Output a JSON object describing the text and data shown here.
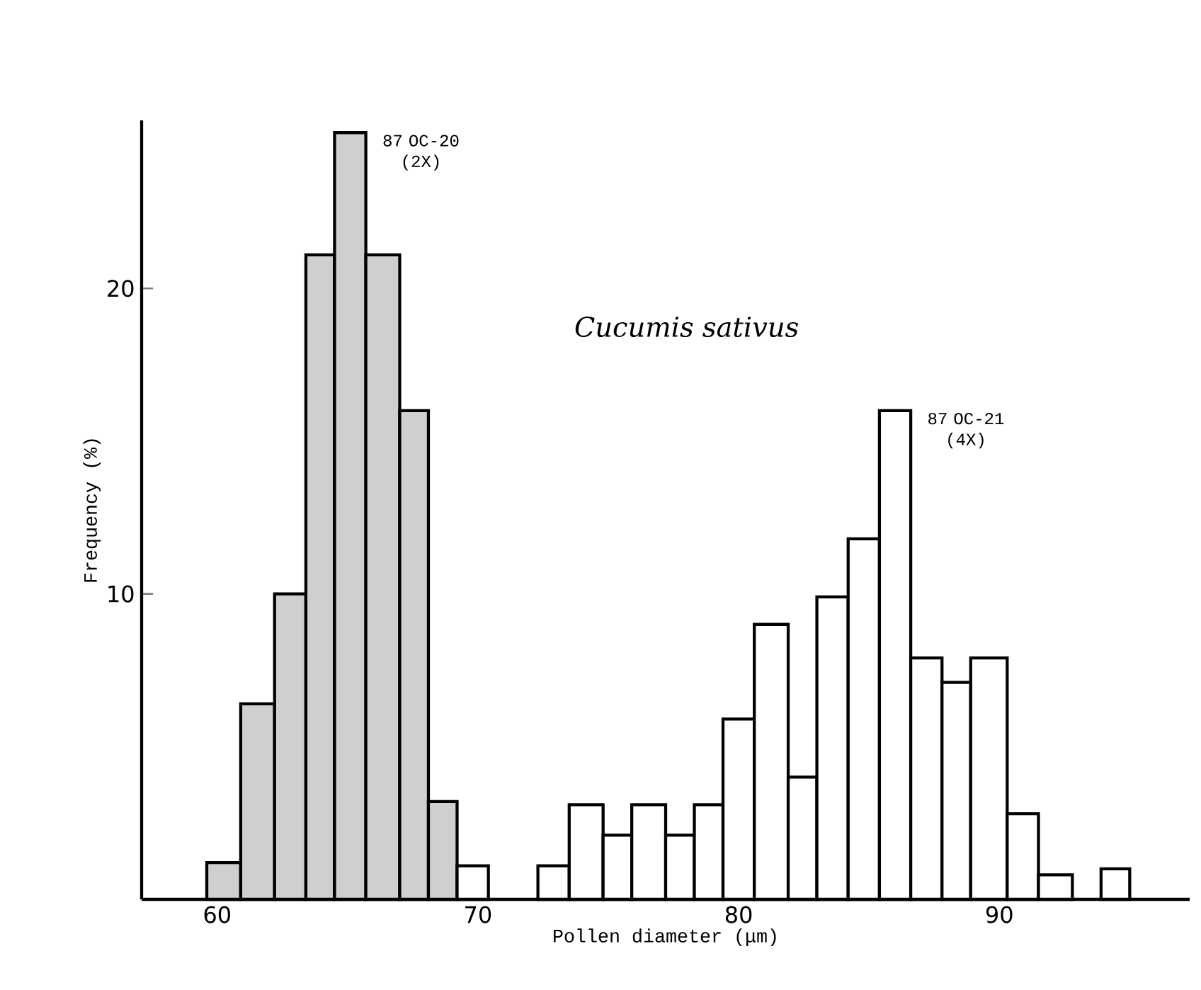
{
  "chart_data": {
    "type": "histogram",
    "title": "Cucumis sativus",
    "xlabel": "Pollen diameter (μm)",
    "ylabel": "Frequency (%)",
    "xlim": [
      57.1,
      97.3
    ],
    "ylim": [
      0,
      25.5
    ],
    "xticks": [
      60,
      70,
      80,
      90
    ],
    "yticks": [
      10,
      20
    ],
    "bins": [
      59.6,
      60.9,
      62.2,
      63.4,
      64.5,
      65.7,
      67.0,
      68.1,
      69.2,
      70.4,
      72.3,
      73.5,
      74.8,
      75.9,
      77.2,
      78.3,
      79.4,
      80.6,
      81.9,
      83.0,
      84.2,
      85.4,
      86.6,
      87.8,
      88.9,
      90.3,
      91.5,
      92.8,
      93.9,
      95.0
    ],
    "series": [
      {
        "name": "87 OC-20 (2X)",
        "color": "#cfcfcf",
        "values": [
          1.2,
          6.4,
          10.0,
          21.1,
          25.1,
          21.1,
          16.0,
          3.2,
          null,
          null,
          null,
          null,
          null,
          null,
          null,
          null,
          null,
          null,
          null,
          null,
          null,
          null,
          null,
          null,
          null,
          null,
          null,
          null,
          null
        ]
      },
      {
        "name": "87 OC-21 (4X)",
        "color": "#ffffff",
        "values": [
          null,
          null,
          null,
          null,
          null,
          null,
          null,
          null,
          1.1,
          null,
          1.1,
          3.1,
          2.1,
          3.1,
          2.1,
          3.1,
          5.9,
          9.0,
          4.0,
          9.9,
          11.8,
          16.0,
          7.9,
          7.1,
          7.9,
          2.8,
          0.8,
          null,
          1.0
        ]
      }
    ]
  }
}
